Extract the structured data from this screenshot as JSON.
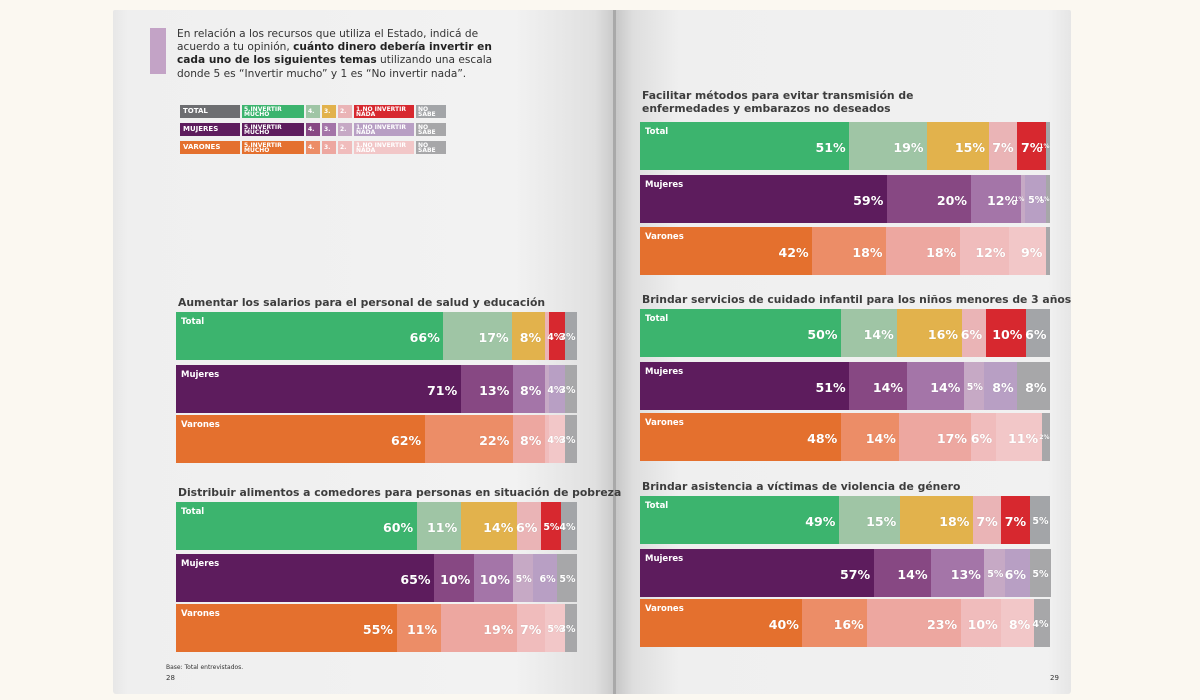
{
  "intro": {
    "pre": "En relación a los recursos que utiliza el Estado, indicá de acuerdo a tu opinión,",
    "bold": "cuánto dinero debería invertir en cada uno de los siguientes temas",
    "post": "utilizando una escala donde 5 es “Invertir mucho” y 1 es “No invertir nada”."
  },
  "legend": {
    "groups": [
      "TOTAL",
      "MUJERES",
      "VARONES"
    ],
    "labels": [
      "5.INVERTIR MUCHO",
      "4.",
      "3.",
      "2.",
      "1.NO INVERTIR NADA",
      "NO SABE"
    ]
  },
  "colors": {
    "total": [
      "#3cb46e",
      "#9fc5a5",
      "#e2b24c",
      "#eab4b6",
      "#d7282f",
      "#a3a5a8"
    ],
    "mujeres": [
      "#5d1c5d",
      "#874883",
      "#a475a8",
      "#c6a9c5",
      "#b89fc4",
      "#a7a7a9"
    ],
    "varones": [
      "#e4702e",
      "#ec8d67",
      "#eda7a0",
      "#f0bcbc",
      "#f2c7c8",
      "#a7a7a9"
    ]
  },
  "row_labels": [
    "Total",
    "Mujeres",
    "Varones"
  ],
  "footer": {
    "base": "Base: Total entrevistados.",
    "page_left": "28",
    "page_right": "29"
  },
  "chart_data": [
    {
      "type": "bar",
      "title": "Aumentar los salarios para el personal de salud y educación",
      "categories": [
        "5.Invertir mucho",
        "4.",
        "3.",
        "2.",
        "1.No invertir nada",
        "No sabe"
      ],
      "series": [
        {
          "name": "Total",
          "values": [
            66,
            17,
            8,
            1,
            4,
            3
          ],
          "labels": [
            "66%",
            "17%",
            "8%",
            "",
            "4%",
            "3%"
          ]
        },
        {
          "name": "Mujeres",
          "values": [
            71,
            13,
            8,
            1,
            4,
            3
          ],
          "labels": [
            "71%",
            "13%",
            "8%",
            "",
            "4%",
            "3%"
          ]
        },
        {
          "name": "Varones",
          "values": [
            62,
            22,
            8,
            1,
            4,
            3
          ],
          "labels": [
            "62%",
            "22%",
            "8%",
            "",
            "4%",
            "3%"
          ]
        }
      ]
    },
    {
      "type": "bar",
      "title": "Distribuir alimentos a comedores para personas en situación de pobreza",
      "categories": [
        "5.Invertir mucho",
        "4.",
        "3.",
        "2.",
        "1.No invertir nada",
        "No sabe"
      ],
      "series": [
        {
          "name": "Total",
          "values": [
            60,
            11,
            14,
            6,
            5,
            4
          ],
          "labels": [
            "60%",
            "11%",
            "14%",
            "6%",
            "5%",
            "4%"
          ]
        },
        {
          "name": "Mujeres",
          "values": [
            65,
            10,
            10,
            5,
            6,
            5
          ],
          "labels": [
            "65%",
            "10%",
            "10%",
            "5%",
            "6%",
            "5%"
          ]
        },
        {
          "name": "Varones",
          "values": [
            55,
            11,
            19,
            7,
            5,
            3
          ],
          "labels": [
            "55%",
            "11%",
            "19%",
            "7%",
            "5%",
            "3%"
          ]
        }
      ]
    },
    {
      "type": "bar",
      "title": "Facilitar métodos para evitar transmisión de enfermedades y embarazos no deseados",
      "categories": [
        "5.Invertir mucho",
        "4.",
        "3.",
        "2.",
        "1.No invertir nada",
        "No sabe"
      ],
      "series": [
        {
          "name": "Total",
          "values": [
            51,
            19,
            15,
            7,
            7,
            1
          ],
          "labels": [
            "51%",
            "19%",
            "15%",
            "7%",
            "7%",
            "1%"
          ]
        },
        {
          "name": "Mujeres",
          "values": [
            59,
            20,
            12,
            1,
            5,
            1
          ],
          "labels": [
            "59%",
            "20%",
            "12%",
            "1%",
            "5%",
            "1%"
          ]
        },
        {
          "name": "Varones",
          "values": [
            42,
            18,
            18,
            12,
            9,
            1
          ],
          "labels": [
            "42%",
            "18%",
            "18%",
            "12%",
            "9%",
            ""
          ]
        }
      ]
    },
    {
      "type": "bar",
      "title": "Brindar servicios de cuidado infantil para los niños menores de 3 años",
      "categories": [
        "5.Invertir mucho",
        "4.",
        "3.",
        "2.",
        "1.No invertir nada",
        "No sabe"
      ],
      "series": [
        {
          "name": "Total",
          "values": [
            50,
            14,
            16,
            6,
            10,
            6
          ],
          "labels": [
            "50%",
            "14%",
            "16%",
            "6%",
            "10%",
            "6%"
          ]
        },
        {
          "name": "Mujeres",
          "values": [
            51,
            14,
            14,
            5,
            8,
            8
          ],
          "labels": [
            "51%",
            "14%",
            "14%",
            "5%",
            "8%",
            "8%"
          ]
        },
        {
          "name": "Varones",
          "values": [
            48,
            14,
            17,
            6,
            11,
            2
          ],
          "labels": [
            "48%",
            "14%",
            "17%",
            "6%",
            "11%",
            "2%"
          ]
        }
      ]
    },
    {
      "type": "bar",
      "title": "Brindar asistencia a víctimas de violencia de género",
      "categories": [
        "5.Invertir mucho",
        "4.",
        "3.",
        "2.",
        "1.No invertir nada",
        "No sabe"
      ],
      "series": [
        {
          "name": "Total",
          "values": [
            49,
            15,
            18,
            7,
            7,
            5
          ],
          "labels": [
            "49%",
            "15%",
            "18%",
            "7%",
            "7%",
            "5%"
          ]
        },
        {
          "name": "Mujeres",
          "values": [
            57,
            14,
            13,
            5,
            6,
            5
          ],
          "labels": [
            "57%",
            "14%",
            "13%",
            "5%",
            "6%",
            "5%"
          ]
        },
        {
          "name": "Varones",
          "values": [
            40,
            16,
            23,
            10,
            8,
            4
          ],
          "labels": [
            "40%",
            "16%",
            "23%",
            "10%",
            "8%",
            "4%"
          ]
        }
      ]
    }
  ]
}
